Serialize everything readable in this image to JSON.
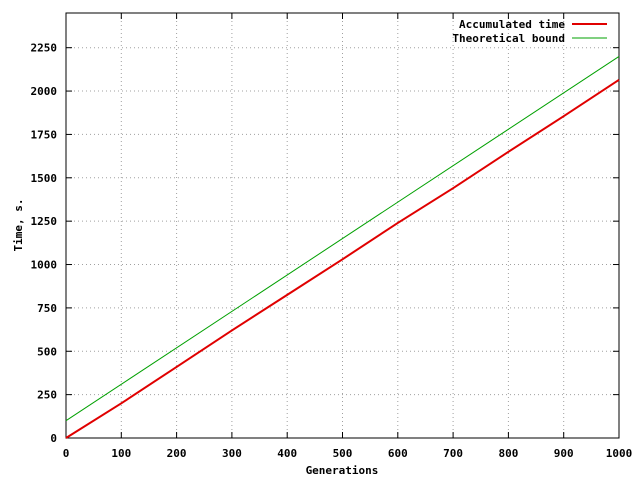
{
  "chart_data": {
    "type": "line",
    "xlabel": "Generations",
    "ylabel": "Time, s.",
    "xlim": [
      0,
      1000
    ],
    "ylim": [
      0,
      2450
    ],
    "xticks": [
      0,
      100,
      200,
      300,
      400,
      500,
      600,
      700,
      800,
      900,
      1000
    ],
    "yticks": [
      0,
      250,
      500,
      750,
      1000,
      1250,
      1500,
      1750,
      2000,
      2250
    ],
    "grid": true,
    "legend_position": "top-right",
    "series": [
      {
        "name": "Accumulated time",
        "color": "#e00000",
        "x": [
          0,
          100,
          200,
          300,
          400,
          500,
          600,
          700,
          800,
          900,
          1000
        ],
        "y": [
          0,
          200,
          410,
          620,
          825,
          1030,
          1240,
          1440,
          1650,
          1855,
          2065
        ]
      },
      {
        "name": "Theoretical bound",
        "color": "#00a000",
        "x": [
          0,
          1000
        ],
        "y": [
          100,
          2200
        ]
      }
    ]
  }
}
